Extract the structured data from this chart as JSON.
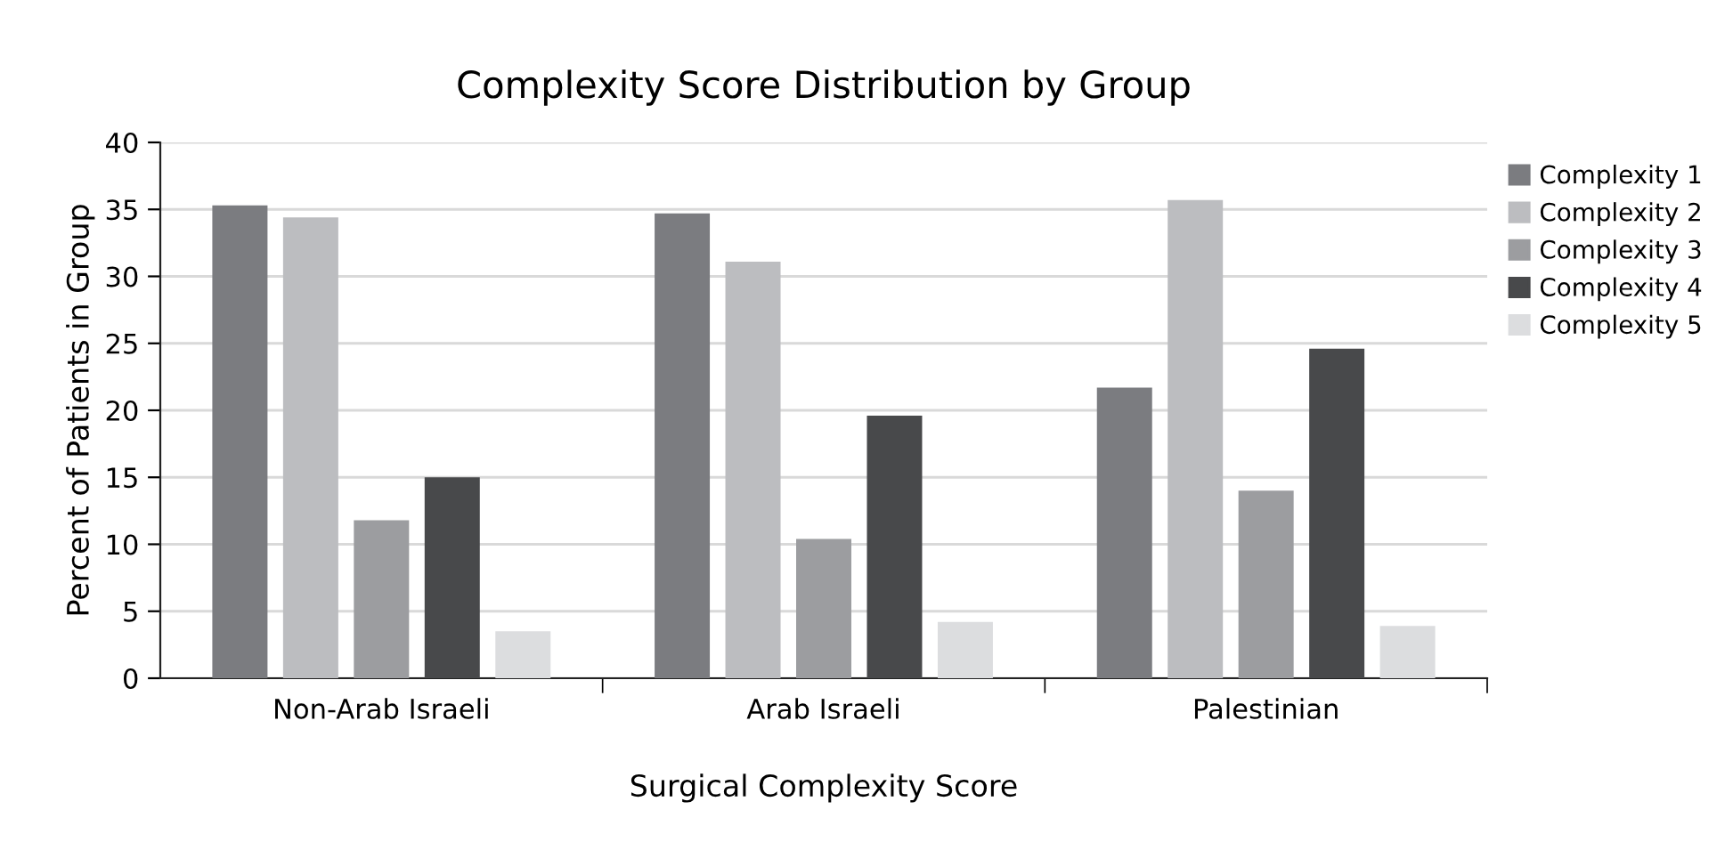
{
  "chart_data": {
    "type": "bar",
    "title": "Complexity Score Distribution by Group",
    "xlabel": "Surgical Complexity Score",
    "ylabel": "Percent of Patients in Group",
    "categories": [
      "Non-Arab Israeli",
      "Arab Israeli",
      "Palestinian"
    ],
    "series": [
      {
        "name": "Complexity 1",
        "color": "#7b7c80",
        "values": [
          35.3,
          34.7,
          21.7
        ]
      },
      {
        "name": "Complexity 2",
        "color": "#bcbdc0",
        "values": [
          34.4,
          31.1,
          35.7
        ]
      },
      {
        "name": "Complexity 3",
        "color": "#9c9da0",
        "values": [
          11.8,
          10.4,
          14.0
        ]
      },
      {
        "name": "Complexity 4",
        "color": "#48494b",
        "values": [
          15.0,
          19.6,
          24.6
        ]
      },
      {
        "name": "Complexity 5",
        "color": "#dcdddf",
        "values": [
          3.5,
          4.2,
          3.9
        ]
      }
    ],
    "ylim": [
      0,
      40
    ],
    "yticks": [
      0,
      5,
      10,
      15,
      20,
      25,
      30,
      35,
      40
    ],
    "grid": "y",
    "legend": "right"
  }
}
